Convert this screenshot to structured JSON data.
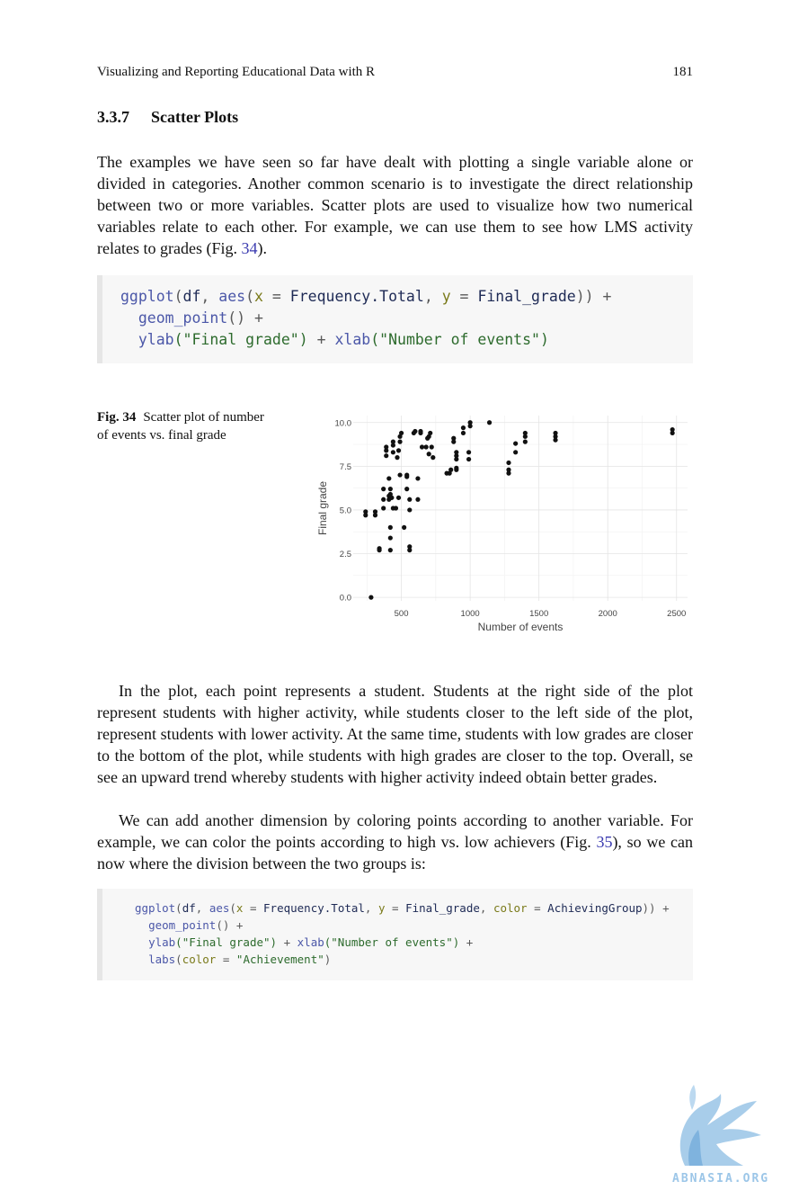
{
  "header": {
    "title": "Visualizing and Reporting Educational Data with R",
    "page_number": "181"
  },
  "section": {
    "number": "3.3.7",
    "title": "Scatter Plots"
  },
  "paragraph1": {
    "text": "The examples we have seen so far have dealt with plotting a single variable alone or divided in categories. Another common scenario is to investigate the direct relationship between two or more variables. Scatter plots are used to visualize how two numerical variables relate to each other. For example, we can use them to see how LMS activity relates to grades (Fig.",
    "ref": "34",
    "tail": ")."
  },
  "code1": {
    "line1": {
      "fn1": "ggplot",
      "p1": "(",
      "df": "df",
      "c1": ", ",
      "fn2": "aes",
      "p2": "(",
      "x": "x",
      "eq1": " = ",
      "xv": "Frequency.Total",
      "c2": ", ",
      "y": "y",
      "eq2": " = ",
      "yv": "Final_grade",
      "close": ")) +"
    },
    "line2": {
      "fn": "geom_point",
      "rest": "() +"
    },
    "line3": {
      "fn1": "ylab",
      "s1": "(\"Final grade\")",
      "plus": " + ",
      "fn2": "xlab",
      "s2": "(\"Number of events\")"
    }
  },
  "figure": {
    "label": "Fig. 34",
    "caption": "Scatter plot of number of events vs. final grade"
  },
  "chart_data": {
    "type": "scatter",
    "xlabel": "Number of events",
    "ylabel": "Final grade",
    "xlim": [
      150,
      2580
    ],
    "ylim": [
      -0.2,
      10.4
    ],
    "x_ticks": [
      500,
      1000,
      1500,
      2000,
      2500
    ],
    "y_ticks": [
      0.0,
      2.5,
      5.0,
      7.5,
      10.0
    ],
    "x_tick_labels": [
      "500",
      "1000",
      "1500",
      "2000",
      "2500"
    ],
    "y_tick_labels": [
      "0.0",
      "2.5",
      "5.0",
      "7.5",
      "10.0"
    ],
    "grid": true,
    "point_color": "#111111",
    "points": [
      [
        280,
        0
      ],
      [
        240,
        4.9
      ],
      [
        240,
        4.7
      ],
      [
        310,
        4.9
      ],
      [
        310,
        4.7
      ],
      [
        340,
        2.8
      ],
      [
        340,
        2.7
      ],
      [
        370,
        5.1
      ],
      [
        370,
        5.6
      ],
      [
        370,
        6.2
      ],
      [
        390,
        8.1
      ],
      [
        390,
        8.4
      ],
      [
        390,
        8.6
      ],
      [
        410,
        5.6
      ],
      [
        410,
        5.8
      ],
      [
        410,
        6.8
      ],
      [
        420,
        6.2
      ],
      [
        420,
        5.9
      ],
      [
        420,
        4.0
      ],
      [
        420,
        3.4
      ],
      [
        420,
        2.7
      ],
      [
        430,
        5.7
      ],
      [
        440,
        5.1
      ],
      [
        440,
        8.3
      ],
      [
        440,
        8.7
      ],
      [
        440,
        8.9
      ],
      [
        460,
        5.1
      ],
      [
        470,
        8.0
      ],
      [
        480,
        8.4
      ],
      [
        480,
        5.7
      ],
      [
        490,
        7.0
      ],
      [
        490,
        8.9
      ],
      [
        490,
        9.2
      ],
      [
        500,
        9.4
      ],
      [
        520,
        4.0
      ],
      [
        540,
        7.0
      ],
      [
        540,
        6.9
      ],
      [
        540,
        6.2
      ],
      [
        560,
        5.0
      ],
      [
        560,
        5.6
      ],
      [
        560,
        2.9
      ],
      [
        560,
        2.7
      ],
      [
        590,
        9.4
      ],
      [
        600,
        9.5
      ],
      [
        620,
        6.8
      ],
      [
        620,
        5.6
      ],
      [
        640,
        9.4
      ],
      [
        640,
        9.5
      ],
      [
        650,
        8.6
      ],
      [
        680,
        8.6
      ],
      [
        690,
        9.1
      ],
      [
        700,
        9.2
      ],
      [
        700,
        8.2
      ],
      [
        710,
        9.4
      ],
      [
        720,
        8.6
      ],
      [
        730,
        8.0
      ],
      [
        830,
        7.1
      ],
      [
        850,
        7.1
      ],
      [
        860,
        7.3
      ],
      [
        880,
        8.9
      ],
      [
        880,
        9.1
      ],
      [
        900,
        7.3
      ],
      [
        900,
        7.4
      ],
      [
        900,
        7.9
      ],
      [
        900,
        8.1
      ],
      [
        900,
        8.3
      ],
      [
        950,
        9.4
      ],
      [
        950,
        9.7
      ],
      [
        990,
        7.9
      ],
      [
        990,
        8.3
      ],
      [
        1000,
        9.8
      ],
      [
        1000,
        10.0
      ],
      [
        1140,
        10.0
      ],
      [
        1280,
        7.1
      ],
      [
        1280,
        7.3
      ],
      [
        1280,
        7.7
      ],
      [
        1330,
        8.3
      ],
      [
        1330,
        8.8
      ],
      [
        1400,
        8.9
      ],
      [
        1400,
        9.2
      ],
      [
        1400,
        9.4
      ],
      [
        1620,
        9.0
      ],
      [
        1620,
        9.2
      ],
      [
        1620,
        9.4
      ],
      [
        2470,
        9.4
      ],
      [
        2470,
        9.6
      ]
    ]
  },
  "paragraph2": {
    "text": "In the plot, each point represents a student. Students at the right side of the plot represent students with higher activity, while students closer to the left side of the plot, represent students with lower activity. At the same time, students with low grades are closer to the bottom of the plot, while students with high grades are closer to the top. Overall, se see an upward trend whereby students with higher activity indeed obtain better grades."
  },
  "paragraph3": {
    "text": "We can add another dimension by coloring points according to another variable. For example, we can color the points according to high vs. low achievers (Fig.",
    "ref": "35",
    "tail": "), so we can now where the division between the two groups is:"
  },
  "code2": {
    "line1": {
      "fn1": "ggplot",
      "p1": "(",
      "df": "df",
      "c1": ", ",
      "fn2": "aes",
      "p2": "(",
      "x": "x",
      "eq1": " = ",
      "xv": "Frequency.Total",
      "c2": ", ",
      "y": "y",
      "eq2": " = ",
      "yv": "Final_grade",
      "c3": ", ",
      "col": "color",
      "eq3": " = ",
      "cv": "AchievingGroup",
      "close": ")) +"
    },
    "line2": {
      "fn": "geom_point",
      "rest": "() +"
    },
    "line3": {
      "fn1": "ylab",
      "s1": "(\"Final grade\")",
      "plus": " + ",
      "fn2": "xlab",
      "s2": "(\"Number of events\")",
      "tail": " +"
    },
    "line4": {
      "fn": "labs",
      "p": "(",
      "col": "color",
      "eq": " = ",
      "s": "\"Achievement\"",
      "close": ")"
    }
  },
  "watermark": {
    "text": "ABNASIA.ORG"
  }
}
